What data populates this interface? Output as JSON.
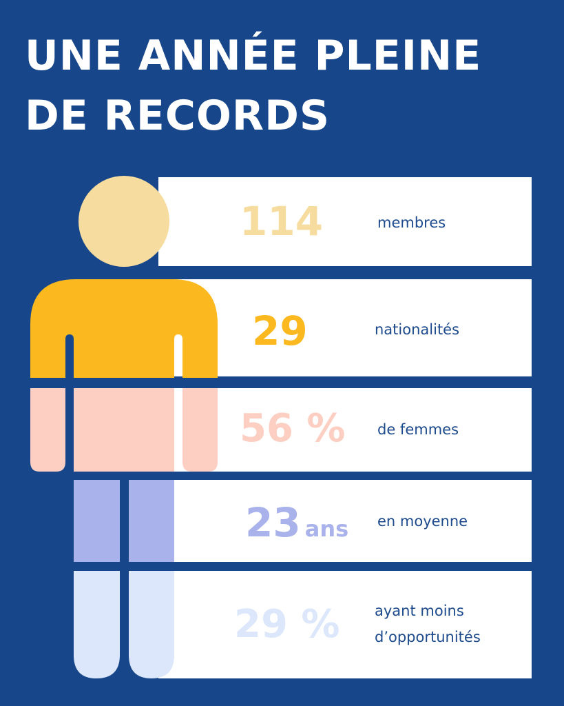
{
  "title": {
    "line1": "UNE ANNÉE PLEINE",
    "line2": "DE RECORDS"
  },
  "stats": [
    {
      "value": "114",
      "unit": "",
      "label": "membres",
      "color": "#f7dc9f"
    },
    {
      "value": "29",
      "unit": "",
      "label": "nationalités",
      "color": "#fbb91f"
    },
    {
      "value": "56 %",
      "unit": "",
      "label": "de femmes",
      "color": "#fdcfc2"
    },
    {
      "value": "23",
      "unit": "ans",
      "label": "en moyenne",
      "color": "#a9b2ea"
    },
    {
      "value": "29 %",
      "unit": "",
      "label_line1": "ayant moins",
      "label_line2": "d’opportunités",
      "color": "#dce7fb"
    }
  ],
  "colors": {
    "background": "#17478a",
    "card": "#ffffff",
    "text": "#1d4a8c",
    "head": "#f7dc9f",
    "torso": "#fbb91f",
    "lower_body": "#fdcfc2",
    "thighs": "#a9b2ea",
    "shins": "#dce7fb"
  }
}
